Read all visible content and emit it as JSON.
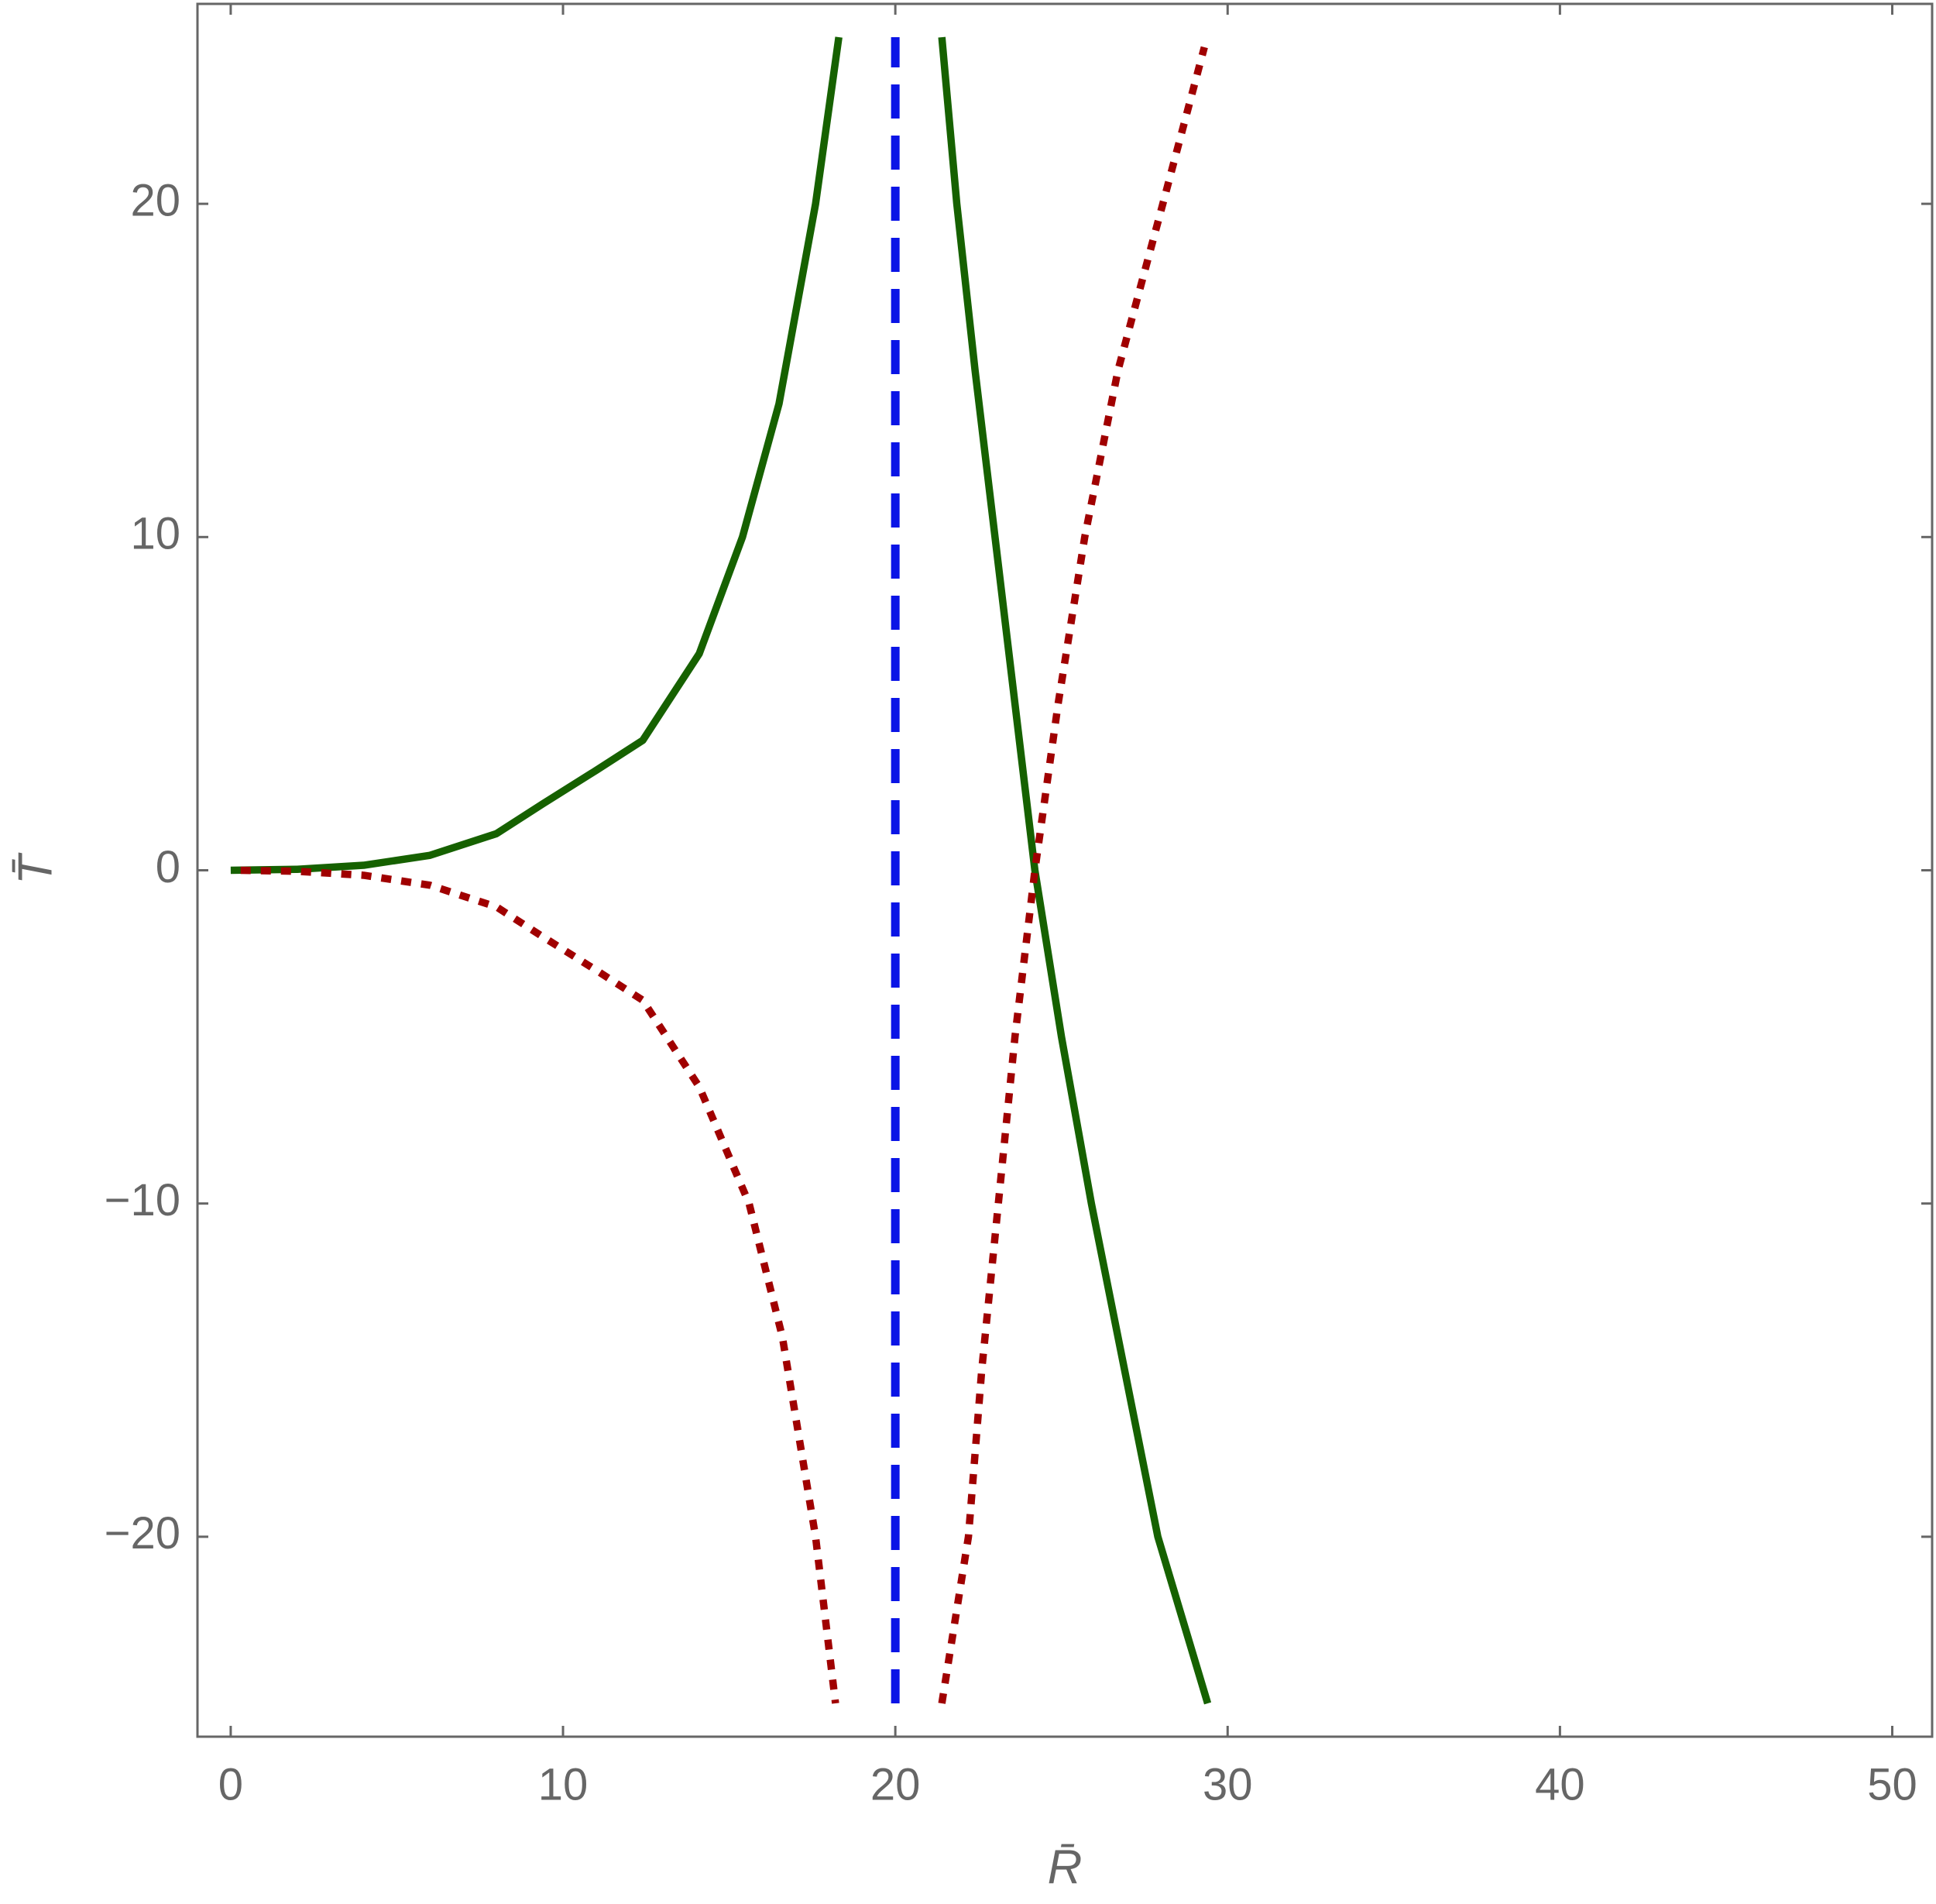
{
  "chart_data": {
    "type": "line",
    "x_label": "R̄",
    "y_label": "T̄",
    "xlim": [
      -1,
      51.2
    ],
    "ylim": [
      -26,
      26
    ],
    "xticks": [
      0,
      10,
      20,
      30,
      40,
      50
    ],
    "yticks": [
      {
        "value": -20,
        "label": "−20"
      },
      {
        "value": -10,
        "label": "−10"
      },
      0,
      10,
      20
    ],
    "series": [
      {
        "color": "#166100",
        "style": "solid",
        "x": [
          0,
          2,
          4,
          6,
          8,
          9.4,
          11,
          12.4,
          14.1,
          15.4,
          16.5,
          17.6,
          18.3
        ],
        "values": [
          0,
          0.03,
          0.15,
          0.45,
          1.1,
          2,
          3,
          3.9,
          6.5,
          10,
          14,
          20,
          25
        ]
      },
      {
        "color": "#166100",
        "style": "solid",
        "x": [
          21.4,
          21.85,
          22.4,
          23.0,
          23.6,
          24.2,
          25,
          25.9,
          26.9,
          27.9,
          29.4
        ],
        "values": [
          25,
          20,
          15,
          10,
          5,
          0,
          -5,
          -10,
          -15,
          -20,
          -25
        ]
      },
      {
        "color": "#a00000",
        "style": "dotted",
        "x": [
          0.3,
          2,
          4,
          6,
          8,
          9.4,
          11,
          12.4,
          14.1,
          15.6,
          16.6,
          17.6,
          18.2
        ],
        "values": [
          0,
          -0.03,
          -0.15,
          -0.45,
          -1.1,
          -2,
          -3,
          -3.9,
          -6.5,
          -10,
          -14,
          -20,
          -25
        ]
      },
      {
        "color": "#a00000",
        "style": "dotted",
        "x": [
          21.4,
          22.2,
          22.6,
          23.1,
          23.6,
          24.2,
          24.9,
          25.7,
          26.7,
          28.05,
          29.3
        ],
        "values": [
          -25,
          -20,
          -15,
          -10,
          -5,
          0,
          5,
          10,
          15,
          20,
          24.7
        ]
      },
      {
        "color": "#0a14e6",
        "style": "dashed",
        "x": [
          20,
          20
        ],
        "values": [
          -25,
          25
        ]
      }
    ]
  }
}
